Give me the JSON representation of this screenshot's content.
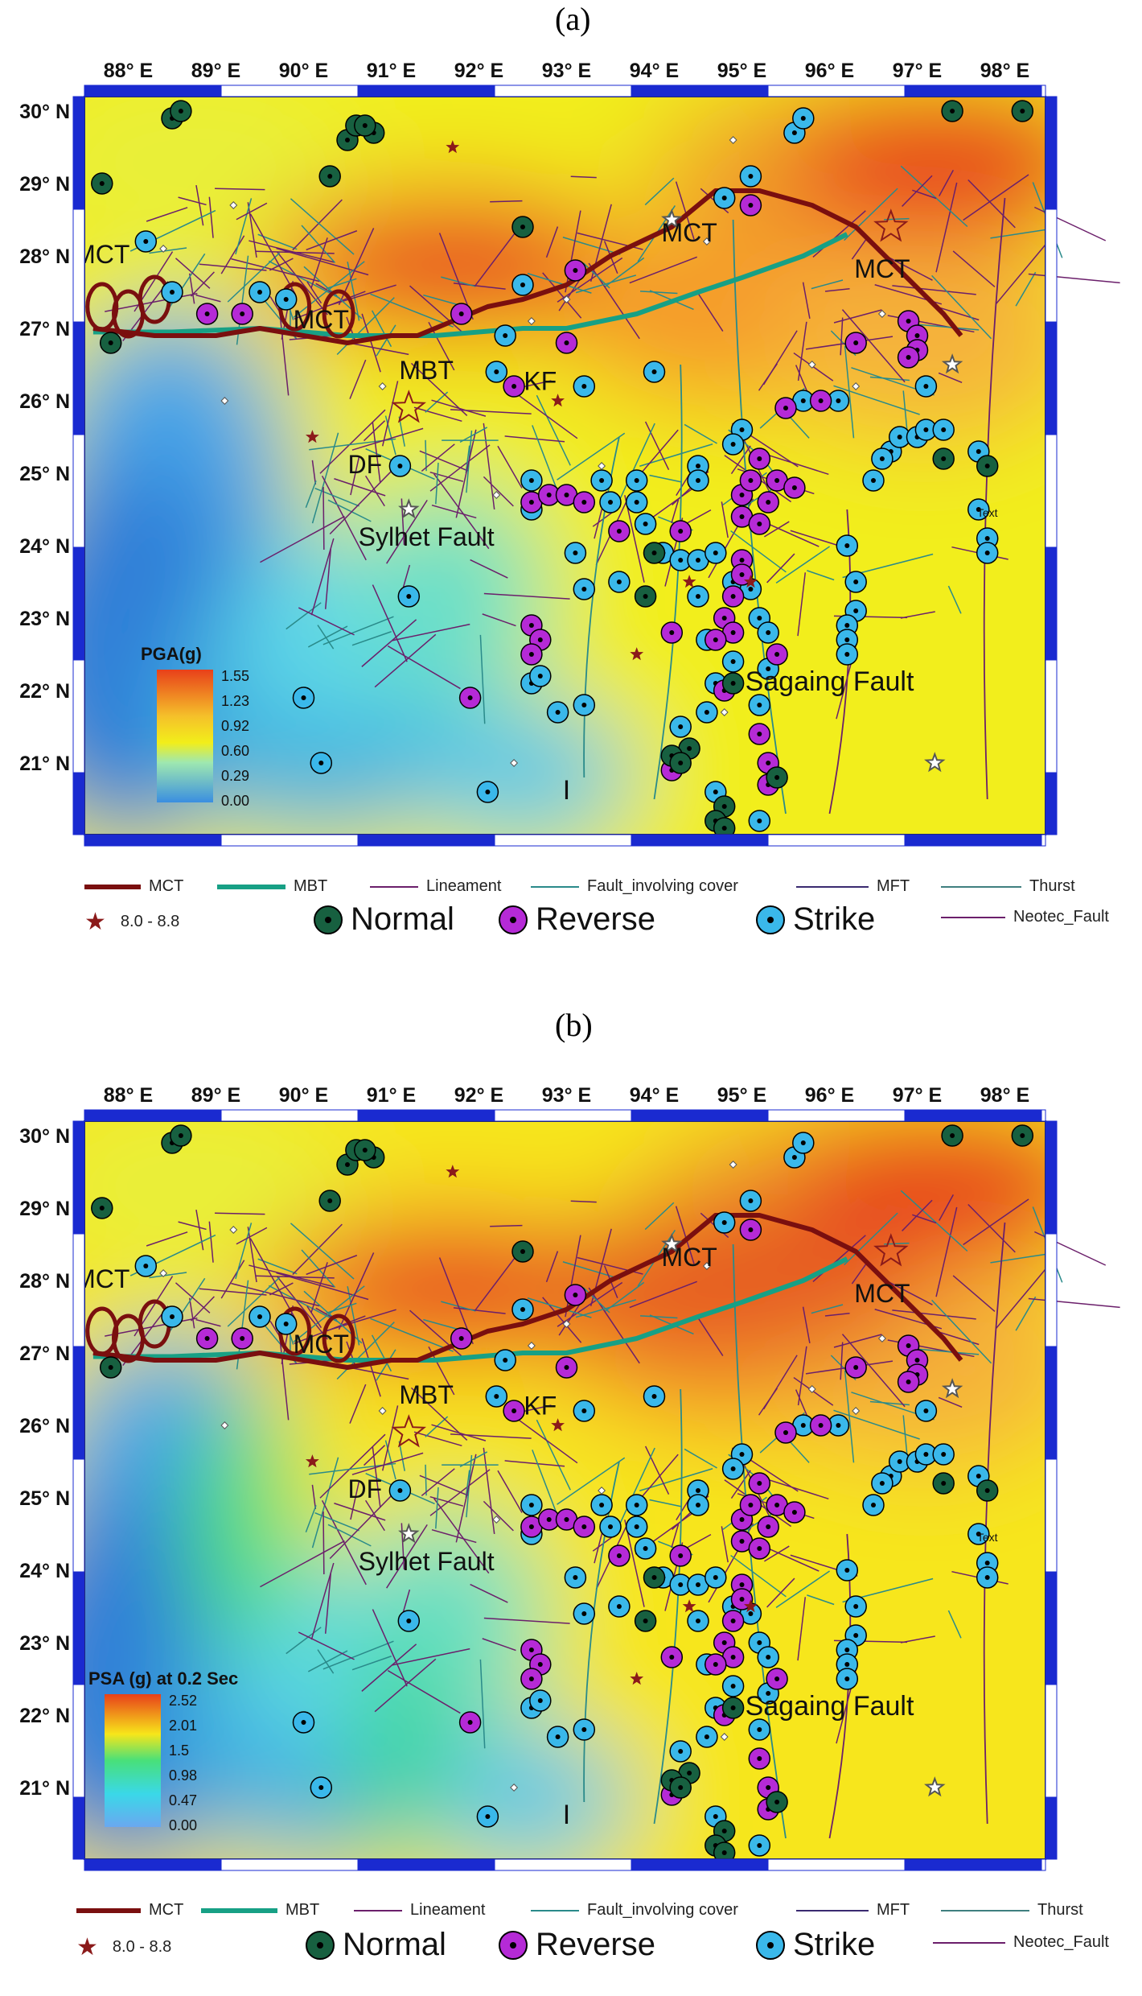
{
  "panels": [
    {
      "label": "(a)",
      "colorbar": {
        "title": "PGA(g)",
        "ticks": [
          "1.55",
          "1.23",
          "0.92",
          "0.60",
          "0.29",
          "0.00"
        ]
      }
    },
    {
      "label": "(b)",
      "colorbar": {
        "title": "PSA (g) at 0.2 Sec",
        "ticks": [
          "2.52",
          "2.01",
          "1.5",
          "0.98",
          "0.47",
          "0.00"
        ]
      }
    }
  ],
  "axes": {
    "lon_labels": [
      "88° E",
      "89° E",
      "90° E",
      "91° E",
      "92° E",
      "93° E",
      "94° E",
      "95° E",
      "96° E",
      "97° E",
      "98° E"
    ],
    "lat_labels": [
      "30° N",
      "29° N",
      "28° N",
      "27° N",
      "26° N",
      "25° N",
      "24° N",
      "23° N",
      "22° N",
      "21° N"
    ]
  },
  "map_labels": {
    "mct": "MCT",
    "mbt": "MBT",
    "kf": "KF",
    "df": "DF",
    "sylhet": "Sylhet Fault",
    "sagaing": "Sagaing Fault",
    "text_stub": "Text",
    "i_mark": "I"
  },
  "legend": {
    "mct": "MCT",
    "mbt": "MBT",
    "lineament": "Lineament",
    "fault_cover": "Fault_involving cover",
    "mft": "MFT",
    "thurst": "Thurst",
    "magnitude": "8.0 - 8.8",
    "normal": "Normal",
    "reverse": "Reverse",
    "strike": "Strike",
    "neotec": "Neotec_Fault"
  },
  "colors": {
    "mct": "#7a0f0f",
    "mbt": "#17a085",
    "lineament": "#6b1f6b",
    "fault_cover": "#2a8a8a",
    "mft": "#3a2a70",
    "thurst": "#3f7f7f",
    "neotec": "#6b1f6b",
    "normal": "#176040",
    "reverse": "#b52ad6",
    "strike": "#3ab8ea",
    "star": "#8b1a1a"
  }
}
